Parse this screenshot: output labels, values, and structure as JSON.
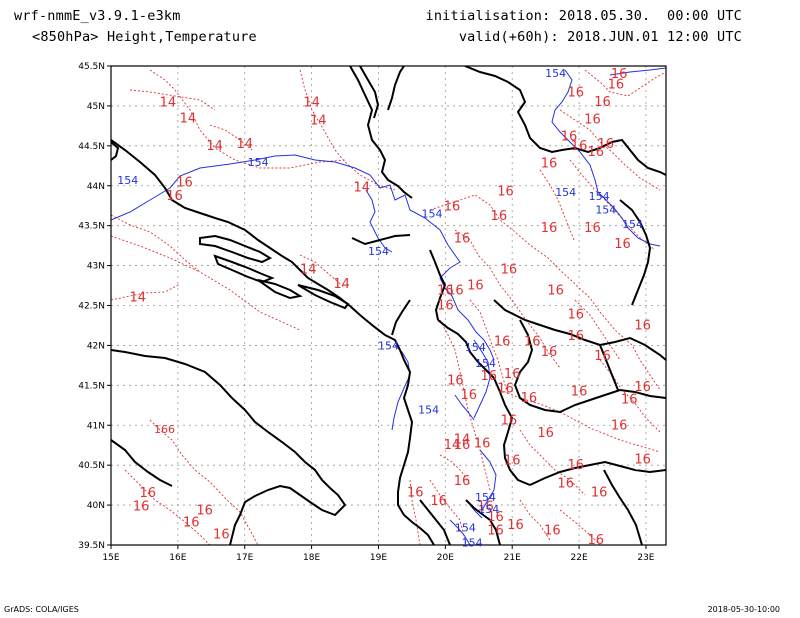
{
  "header": {
    "model": "wrf-nmmE_v3.9.1-e3km",
    "field": "<850hPa> Height,Temperature",
    "init_label": "initialisation:",
    "init_value": "2018.05.30.  00:00 UTC",
    "valid_label": "valid(+60h):",
    "valid_value": "2018.JUN.01 12:00 UTC"
  },
  "map": {
    "lon_ticks": [
      "15E",
      "16E",
      "17E",
      "18E",
      "19E",
      "20E",
      "21E",
      "22E",
      "23E"
    ],
    "lat_ticks": [
      "39.5N",
      "40N",
      "40.5N",
      "41N",
      "41.5N",
      "42N",
      "42.5N",
      "43N",
      "43.5N",
      "44N",
      "44.5N",
      "45N",
      "45.5N"
    ],
    "colors": {
      "height": "#2233dd",
      "temperature": "#e03030",
      "coast": "#000000",
      "grid": "#999999"
    },
    "height_labels": [
      {
        "text": "154",
        "lon": 21.65,
        "lat": 45.41
      },
      {
        "text": "154",
        "lon": 15.25,
        "lat": 44.07
      },
      {
        "text": "154",
        "lon": 17.2,
        "lat": 44.3
      },
      {
        "text": "154",
        "lon": 19.8,
        "lat": 43.65
      },
      {
        "text": "154",
        "lon": 19.0,
        "lat": 43.18
      },
      {
        "text": "154",
        "lon": 21.8,
        "lat": 43.92
      },
      {
        "text": "154",
        "lon": 22.3,
        "lat": 43.87
      },
      {
        "text": "154",
        "lon": 22.4,
        "lat": 43.7
      },
      {
        "text": "154",
        "lon": 22.8,
        "lat": 43.52
      },
      {
        "text": "154",
        "lon": 19.15,
        "lat": 42.0
      },
      {
        "text": "154",
        "lon": 20.45,
        "lat": 41.98
      },
      {
        "text": "154",
        "lon": 20.6,
        "lat": 41.78
      },
      {
        "text": "154",
        "lon": 19.75,
        "lat": 41.2
      },
      {
        "text": "154",
        "lon": 20.6,
        "lat": 40.1
      },
      {
        "text": "154",
        "lon": 20.65,
        "lat": 39.95
      },
      {
        "text": "154",
        "lon": 20.3,
        "lat": 39.72
      },
      {
        "text": "154",
        "lon": 20.4,
        "lat": 39.53
      }
    ],
    "temp_labels": [
      {
        "text": "16",
        "lon": 22.6,
        "lat": 45.4
      },
      {
        "text": "16",
        "lon": 22.55,
        "lat": 45.27
      },
      {
        "text": "16",
        "lon": 21.95,
        "lat": 45.17
      },
      {
        "text": "16",
        "lon": 22.35,
        "lat": 45.05
      },
      {
        "text": "16",
        "lon": 22.2,
        "lat": 44.83
      },
      {
        "text": "16",
        "lon": 21.85,
        "lat": 44.62
      },
      {
        "text": "16",
        "lon": 22.0,
        "lat": 44.5
      },
      {
        "text": "16",
        "lon": 22.4,
        "lat": 44.52
      },
      {
        "text": "16",
        "lon": 22.25,
        "lat": 44.42
      },
      {
        "text": "16",
        "lon": 21.55,
        "lat": 44.28
      },
      {
        "text": "16",
        "lon": 20.9,
        "lat": 43.93
      },
      {
        "text": "16",
        "lon": 20.1,
        "lat": 43.74
      },
      {
        "text": "16",
        "lon": 20.8,
        "lat": 43.62
      },
      {
        "text": "16",
        "lon": 21.55,
        "lat": 43.47
      },
      {
        "text": "16",
        "lon": 22.2,
        "lat": 43.47
      },
      {
        "text": "16",
        "lon": 20.25,
        "lat": 43.34
      },
      {
        "text": "16",
        "lon": 22.65,
        "lat": 43.27
      },
      {
        "text": "16",
        "lon": 20.95,
        "lat": 42.95
      },
      {
        "text": "16",
        "lon": 20.45,
        "lat": 42.75
      },
      {
        "text": "16",
        "lon": 21.65,
        "lat": 42.69
      },
      {
        "text": "16",
        "lon": 20.0,
        "lat": 42.69
      },
      {
        "text": "16",
        "lon": 20.15,
        "lat": 42.69
      },
      {
        "text": "16",
        "lon": 20.0,
        "lat": 42.5
      },
      {
        "text": "16",
        "lon": 21.95,
        "lat": 42.39
      },
      {
        "text": "16",
        "lon": 22.95,
        "lat": 42.25
      },
      {
        "text": "16",
        "lon": 20.85,
        "lat": 42.05
      },
      {
        "text": "16",
        "lon": 21.3,
        "lat": 42.05
      },
      {
        "text": "16",
        "lon": 21.55,
        "lat": 41.92
      },
      {
        "text": "16",
        "lon": 21.95,
        "lat": 42.12
      },
      {
        "text": "16",
        "lon": 22.35,
        "lat": 41.87
      },
      {
        "text": "16",
        "lon": 20.65,
        "lat": 41.62
      },
      {
        "text": "16",
        "lon": 21.0,
        "lat": 41.64
      },
      {
        "text": "16",
        "lon": 20.15,
        "lat": 41.56
      },
      {
        "text": "16",
        "lon": 21.25,
        "lat": 41.34
      },
      {
        "text": "16",
        "lon": 20.35,
        "lat": 41.38
      },
      {
        "text": "16",
        "lon": 20.9,
        "lat": 41.46
      },
      {
        "text": "16",
        "lon": 22.0,
        "lat": 41.42
      },
      {
        "text": "16",
        "lon": 22.75,
        "lat": 41.32
      },
      {
        "text": "16",
        "lon": 22.95,
        "lat": 41.48
      },
      {
        "text": "16",
        "lon": 22.6,
        "lat": 41.0
      },
      {
        "text": "16",
        "lon": 20.95,
        "lat": 41.06
      },
      {
        "text": "16",
        "lon": 21.5,
        "lat": 40.9
      },
      {
        "text": "16",
        "lon": 20.55,
        "lat": 40.77
      },
      {
        "text": "16",
        "lon": 20.25,
        "lat": 40.75
      },
      {
        "text": "16",
        "lon": 21.0,
        "lat": 40.56
      },
      {
        "text": "16",
        "lon": 21.95,
        "lat": 40.5
      },
      {
        "text": "16",
        "lon": 22.95,
        "lat": 40.57
      },
      {
        "text": "16",
        "lon": 21.8,
        "lat": 40.27
      },
      {
        "text": "16",
        "lon": 22.3,
        "lat": 40.16
      },
      {
        "text": "16",
        "lon": 20.25,
        "lat": 40.3
      },
      {
        "text": "16",
        "lon": 19.55,
        "lat": 40.16
      },
      {
        "text": "16",
        "lon": 19.9,
        "lat": 40.05
      },
      {
        "text": "16",
        "lon": 20.6,
        "lat": 39.98
      },
      {
        "text": "16",
        "lon": 20.75,
        "lat": 39.85
      },
      {
        "text": "16",
        "lon": 21.05,
        "lat": 39.75
      },
      {
        "text": "16",
        "lon": 20.75,
        "lat": 39.68
      },
      {
        "text": "16",
        "lon": 21.6,
        "lat": 39.68
      },
      {
        "text": "16",
        "lon": 22.25,
        "lat": 39.56
      },
      {
        "text": "166",
        "lon": 15.8,
        "lat": 40.95
      },
      {
        "text": "16",
        "lon": 15.55,
        "lat": 40.15
      },
      {
        "text": "16",
        "lon": 15.45,
        "lat": 39.98
      },
      {
        "text": "16",
        "lon": 16.4,
        "lat": 39.93
      },
      {
        "text": "16",
        "lon": 16.2,
        "lat": 39.78
      },
      {
        "text": "16",
        "lon": 16.65,
        "lat": 39.63
      },
      {
        "text": "16",
        "lon": 16.1,
        "lat": 44.04
      },
      {
        "text": "16",
        "lon": 15.95,
        "lat": 43.87
      },
      {
        "text": "14",
        "lon": 15.85,
        "lat": 45.04
      },
      {
        "text": "14",
        "lon": 16.15,
        "lat": 44.84
      },
      {
        "text": "14",
        "lon": 18.0,
        "lat": 45.04
      },
      {
        "text": "14",
        "lon": 18.1,
        "lat": 44.82
      },
      {
        "text": "14",
        "lon": 16.55,
        "lat": 44.5
      },
      {
        "text": "14",
        "lon": 17.0,
        "lat": 44.52
      },
      {
        "text": "14",
        "lon": 18.75,
        "lat": 43.98
      },
      {
        "text": "14",
        "lon": 17.95,
        "lat": 42.95
      },
      {
        "text": "14",
        "lon": 18.45,
        "lat": 42.77
      },
      {
        "text": "14",
        "lon": 15.4,
        "lat": 42.6
      },
      {
        "text": "14",
        "lon": 20.1,
        "lat": 40.75
      },
      {
        "text": "14",
        "lon": 20.25,
        "lat": 40.82
      }
    ]
  },
  "footer": {
    "left": "GrADS: COLA/IGES",
    "right": "2018-05-30-10:00"
  }
}
